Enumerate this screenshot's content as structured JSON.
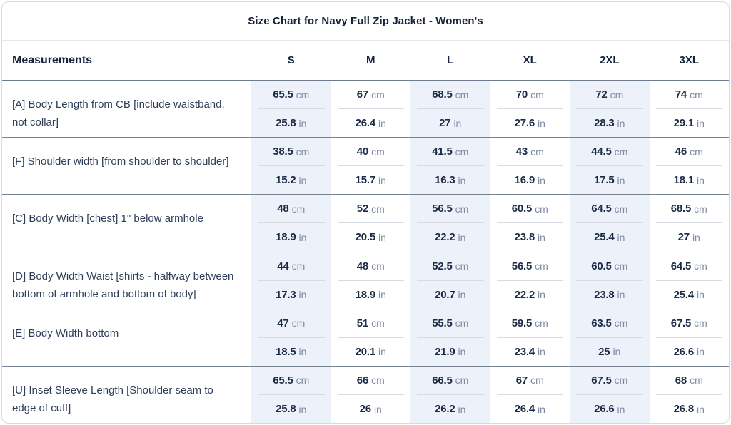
{
  "chart_data": {
    "type": "table",
    "title": "Size Chart for Navy Full Zip Jacket - Women's",
    "measurements_label": "Measurements",
    "sizes": [
      "S",
      "M",
      "L",
      "XL",
      "2XL",
      "3XL"
    ],
    "unit_cm": "cm",
    "unit_in": "in",
    "shaded_size_columns": [
      "S",
      "L",
      "2XL"
    ],
    "rows": [
      {
        "label": "[A] Body Length from CB [include waistband, not collar]",
        "cm": [
          65.5,
          67,
          68.5,
          70,
          72,
          74
        ],
        "in": [
          25.8,
          26.4,
          27,
          27.6,
          28.3,
          29.1
        ]
      },
      {
        "label": "[F] Shoulder width [from shoulder to shoulder]",
        "cm": [
          38.5,
          40,
          41.5,
          43,
          44.5,
          46
        ],
        "in": [
          15.2,
          15.7,
          16.3,
          16.9,
          17.5,
          18.1
        ]
      },
      {
        "label": "[C] Body Width [chest] 1\" below armhole",
        "cm": [
          48,
          52,
          56.5,
          60.5,
          64.5,
          68.5
        ],
        "in": [
          18.9,
          20.5,
          22.2,
          23.8,
          25.4,
          27
        ]
      },
      {
        "label": "[D] Body Width Waist [shirts - halfway between bottom of armhole and bottom of body]",
        "cm": [
          44,
          48,
          52.5,
          56.5,
          60.5,
          64.5
        ],
        "in": [
          17.3,
          18.9,
          20.7,
          22.2,
          23.8,
          25.4
        ]
      },
      {
        "label": "[E] Body Width bottom",
        "cm": [
          47,
          51,
          55.5,
          59.5,
          63.5,
          67.5
        ],
        "in": [
          18.5,
          20.1,
          21.9,
          23.4,
          25,
          26.6
        ]
      },
      {
        "label": "[U] Inset Sleeve Length [Shoulder seam to edge of cuff]",
        "cm": [
          65.5,
          66,
          66.5,
          67,
          67.5,
          68
        ],
        "in": [
          25.8,
          26,
          26.2,
          26.4,
          26.6,
          26.8
        ]
      }
    ]
  },
  "colors": {
    "text_navy": "#1b2a45",
    "label_navy": "#2e3e59",
    "unit_gray": "#7e8aa4",
    "shaded_column_bg": "#edf1f9",
    "row_border": "#77828f",
    "title_border": "#e4e6ea",
    "outer_border": "#d7dade"
  }
}
